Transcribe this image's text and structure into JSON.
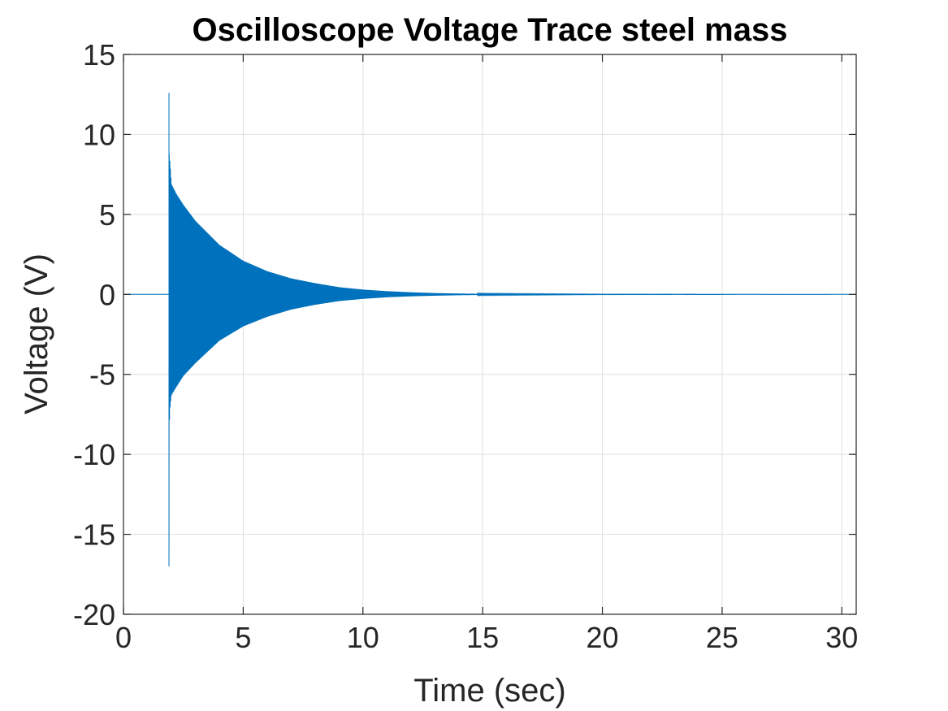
{
  "chart_data": {
    "type": "line",
    "title": "Oscilloscope Voltage Trace steel mass",
    "xlabel": "Time (sec)",
    "ylabel": "Voltage (V)",
    "xlim": [
      0,
      30.6
    ],
    "ylim": [
      -20,
      15
    ],
    "xticks": [
      0,
      5,
      10,
      15,
      20,
      25,
      30
    ],
    "yticks": [
      -20,
      -15,
      -10,
      -5,
      0,
      5,
      10,
      15
    ],
    "xtick_labels": [
      "0",
      "5",
      "10",
      "15",
      "20",
      "25",
      "30"
    ],
    "ytick_labels": [
      "-20",
      "-15",
      "-10",
      "-5",
      "0",
      "5",
      "10",
      "15"
    ],
    "grid": true,
    "series": [
      {
        "color": "#0072bd",
        "description_points": {
          "x": [
            0,
            1.85,
            1.9,
            1.9,
            1.95,
            2.0,
            2.2,
            2.5,
            3.0,
            4.0,
            5.0,
            6.0,
            7.0,
            8.0,
            9.0,
            10.0,
            11.0,
            12.0,
            13.0,
            14.0,
            15.0,
            20.0,
            25.0,
            30.6
          ],
          "upper": [
            0,
            0,
            12.6,
            9.0,
            8.1,
            6.9,
            6.3,
            5.6,
            4.6,
            3.1,
            2.1,
            1.45,
            1.0,
            0.7,
            0.45,
            0.3,
            0.2,
            0.13,
            0.08,
            0.05,
            0.03,
            0.01,
            0.005,
            0
          ],
          "lower": [
            0,
            0,
            -17.0,
            -8.6,
            -7.0,
            -6.3,
            -5.8,
            -5.1,
            -4.3,
            -2.9,
            -2.0,
            -1.4,
            -0.95,
            -0.65,
            -0.42,
            -0.28,
            -0.18,
            -0.12,
            -0.08,
            -0.05,
            -0.03,
            -0.01,
            -0.005,
            0
          ]
        }
      }
    ]
  }
}
